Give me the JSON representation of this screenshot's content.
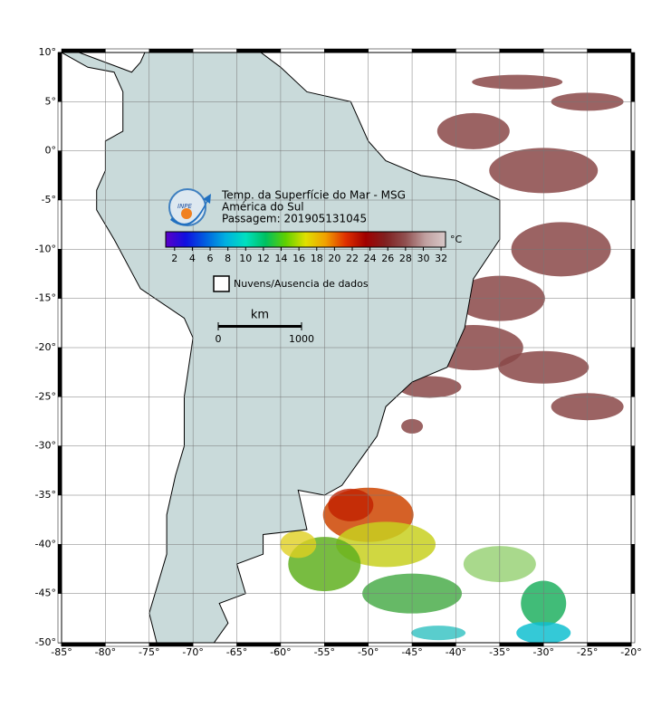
{
  "map": {
    "title_lines": [
      "Temp. da Superfície do Mar - MSG",
      "América do Sul",
      "Passagem: 201905131045"
    ],
    "logo_text": "INPE",
    "xlim": [
      -85,
      -20
    ],
    "ylim": [
      -50,
      10
    ],
    "xticks": [
      {
        "value": -85,
        "label": "-85°"
      },
      {
        "value": -80,
        "label": "-80°"
      },
      {
        "value": -75,
        "label": "-75°"
      },
      {
        "value": -70,
        "label": "-70°"
      },
      {
        "value": -65,
        "label": "-65°"
      },
      {
        "value": -60,
        "label": "-60°"
      },
      {
        "value": -55,
        "label": "-55°"
      },
      {
        "value": -50,
        "label": "-50°"
      },
      {
        "value": -45,
        "label": "-45°"
      },
      {
        "value": -40,
        "label": "-40°"
      },
      {
        "value": -35,
        "label": "-35°"
      },
      {
        "value": -30,
        "label": "-30°"
      },
      {
        "value": -25,
        "label": "-25°"
      },
      {
        "value": -20,
        "label": "-20°"
      }
    ],
    "yticks": [
      {
        "value": 10,
        "label": "10°"
      },
      {
        "value": 5,
        "label": "5°"
      },
      {
        "value": 0,
        "label": "0°"
      },
      {
        "value": -5,
        "label": "-5°"
      },
      {
        "value": -10,
        "label": "-10°"
      },
      {
        "value": -15,
        "label": "-15°"
      },
      {
        "value": -20,
        "label": "-20°"
      },
      {
        "value": -25,
        "label": "-25°"
      },
      {
        "value": -30,
        "label": "-30°"
      },
      {
        "value": -35,
        "label": "-35°"
      },
      {
        "value": -40,
        "label": "-40°"
      },
      {
        "value": -45,
        "label": "-45°"
      },
      {
        "value": -50,
        "label": "-50°"
      }
    ],
    "grid": true,
    "colorbar": {
      "unit": "°C",
      "range": [
        1,
        32.5
      ],
      "ticks": [
        2,
        4,
        6,
        8,
        10,
        12,
        14,
        16,
        18,
        20,
        22,
        24,
        26,
        28,
        30,
        32
      ],
      "colors": [
        "#5a00c8",
        "#1010e0",
        "#0060e0",
        "#00b0e0",
        "#00e0c0",
        "#00c060",
        "#60d000",
        "#e0e000",
        "#f0a000",
        "#e03000",
        "#a00000",
        "#802020",
        "#905050",
        "#c0a0a0",
        "#d8c8c8"
      ]
    },
    "legend": {
      "label": "Nuvens/Ausencia de dados"
    },
    "scale": {
      "unit": "km",
      "labels": [
        "0",
        "1000"
      ]
    }
  }
}
